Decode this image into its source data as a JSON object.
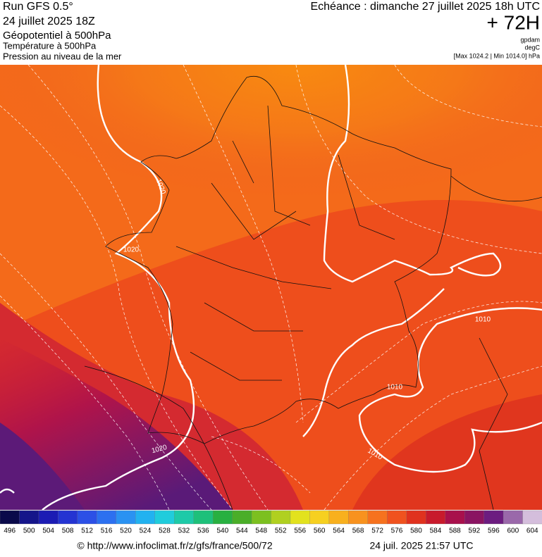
{
  "header": {
    "run": "Run GFS 0.5°",
    "date": "24 juillet 2025 18Z",
    "title": "Géopotentiel à 500hPa",
    "subtitle1": "Température à 500hPa",
    "subtitle2": "Pression au niveau de la mer",
    "echeance": "Echéance : dimanche 27 juillet 2025 18h UTC",
    "lead": "+ 72H",
    "unit1": "gpdam",
    "unit2": "degC",
    "pressure_range": "[Max 1024.2 | Min 1014.0] hPa"
  },
  "contour_labels": [
    "1020",
    "1020",
    "1010",
    "1010",
    "1020",
    "1010"
  ],
  "colorbar": {
    "labels": [
      "496",
      "500",
      "504",
      "508",
      "512",
      "516",
      "520",
      "524",
      "528",
      "532",
      "536",
      "540",
      "544",
      "548",
      "552",
      "556",
      "560",
      "564",
      "568",
      "572",
      "576",
      "580",
      "584",
      "588",
      "592",
      "596",
      "600",
      "604"
    ],
    "colors": [
      "#0a0a4a",
      "#15158a",
      "#1c1cb4",
      "#2434d2",
      "#2c50e6",
      "#2c70f0",
      "#2a92f2",
      "#22b2f0",
      "#20ccdc",
      "#1ecaa8",
      "#1ec07a",
      "#28b040",
      "#4aae28",
      "#7cc020",
      "#b0d020",
      "#e2e21e",
      "#f6d020",
      "#f8b01e",
      "#f8921e",
      "#f6721e",
      "#f0521e",
      "#e0321e",
      "#c81a2c",
      "#a8104c",
      "#8a1462",
      "#6c1c80",
      "#9a68aa",
      "#d4bedc"
    ]
  },
  "footer": {
    "url": "© http://www.infoclimat.fr/z/gfs/france/500/72",
    "timestamp": "24 juil. 2025 21:57 UTC"
  }
}
